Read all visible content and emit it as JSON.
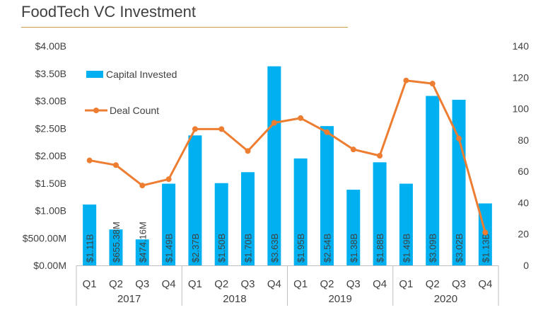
{
  "chart_data": {
    "type": "bar",
    "title": "FoodTech VC Investment",
    "categories": [
      "Q1",
      "Q2",
      "Q3",
      "Q4",
      "Q1",
      "Q2",
      "Q3",
      "Q4",
      "Q1",
      "Q2",
      "Q3",
      "Q4",
      "Q1",
      "Q2",
      "Q3",
      "Q4"
    ],
    "years": [
      {
        "label": "2017",
        "start": 0,
        "end": 3
      },
      {
        "label": "2018",
        "start": 4,
        "end": 7
      },
      {
        "label": "2019",
        "start": 8,
        "end": 11
      },
      {
        "label": "2020",
        "start": 12,
        "end": 15
      }
    ],
    "series": [
      {
        "name": "Capital Invested",
        "type": "bar",
        "axis": "left",
        "color": "#00b0f0",
        "values": [
          1.11,
          0.65538,
          0.47416,
          1.49,
          2.37,
          1.5,
          1.7,
          3.63,
          1.95,
          2.54,
          1.38,
          1.88,
          1.49,
          3.09,
          3.02,
          1.13
        ],
        "labels": [
          "$1.11B",
          "$655.38M",
          "$474.16M",
          "$1.49B",
          "$2.37B",
          "$1.50B",
          "$1.70B",
          "$3.63B",
          "$1.95B",
          "$2.54B",
          "$1.38B",
          "$1.88B",
          "$1.49B",
          "$3.09B",
          "$3.02B",
          "$1.13B"
        ]
      },
      {
        "name": "Deal Count",
        "type": "line",
        "axis": "right",
        "color": "#ed7d31",
        "values": [
          67,
          64,
          51,
          55,
          87,
          87,
          73,
          91,
          94,
          85,
          74,
          70,
          118,
          116,
          81,
          21
        ]
      }
    ],
    "y_left": {
      "ylim": [
        0,
        4
      ],
      "ticks": [
        0,
        0.5,
        1,
        1.5,
        2,
        2.5,
        3,
        3.5,
        4
      ],
      "tick_labels": [
        "$0.00M",
        "$500.00M",
        "$1.00B",
        "$1.50B",
        "$2.00B",
        "$2.50B",
        "$3.00B",
        "$3.50B",
        "$4.00B"
      ]
    },
    "y_right": {
      "ylim": [
        0,
        140
      ],
      "ticks": [
        0,
        20,
        40,
        60,
        80,
        100,
        120,
        140
      ],
      "tick_labels": [
        "0",
        "20",
        "40",
        "60",
        "80",
        "100",
        "120",
        "140"
      ]
    },
    "legend": {
      "placement": "top-left-inside"
    },
    "grid": false
  }
}
